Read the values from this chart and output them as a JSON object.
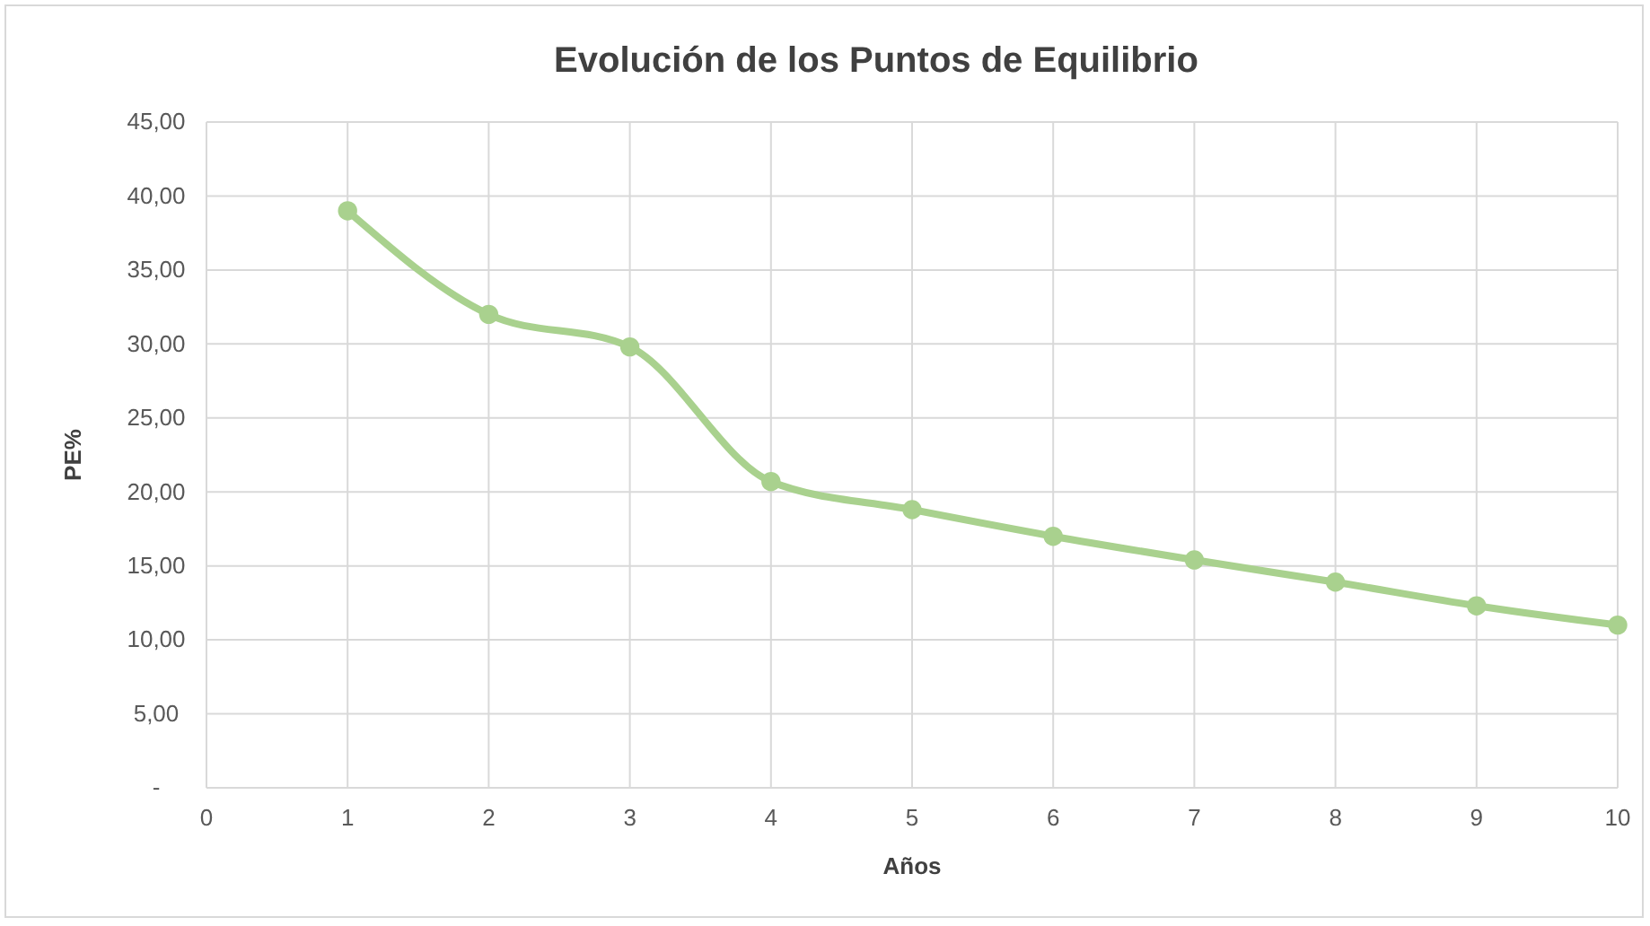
{
  "chart_data": {
    "type": "line",
    "title": "Evolución de los Puntos de Equilibrio",
    "xlabel": "Años",
    "ylabel": "PE%",
    "x": [
      1,
      2,
      3,
      4,
      5,
      6,
      7,
      8,
      9,
      10
    ],
    "series": [
      {
        "color": "#a9d18e",
        "values": [
          39.0,
          32.0,
          29.8,
          20.7,
          18.8,
          17.0,
          15.4,
          13.9,
          12.3,
          11.0
        ]
      }
    ],
    "xlim": [
      0,
      10
    ],
    "xticks": [
      0,
      1,
      2,
      3,
      4,
      5,
      6,
      7,
      8,
      9,
      10
    ],
    "ylim": [
      0,
      45
    ],
    "yticks": [
      {
        "value": 0,
        "label": "-"
      },
      {
        "value": 5,
        "label": "5,00"
      },
      {
        "value": 10,
        "label": "10,00"
      },
      {
        "value": 15,
        "label": "15,00"
      },
      {
        "value": 20,
        "label": "20,00"
      },
      {
        "value": 25,
        "label": "25,00"
      },
      {
        "value": 30,
        "label": "30,00"
      },
      {
        "value": 35,
        "label": "35,00"
      },
      {
        "value": 40,
        "label": "40,00"
      },
      {
        "value": 45,
        "label": "45,00"
      }
    ],
    "grid": true,
    "marker": "circle",
    "line_style": "solid"
  }
}
